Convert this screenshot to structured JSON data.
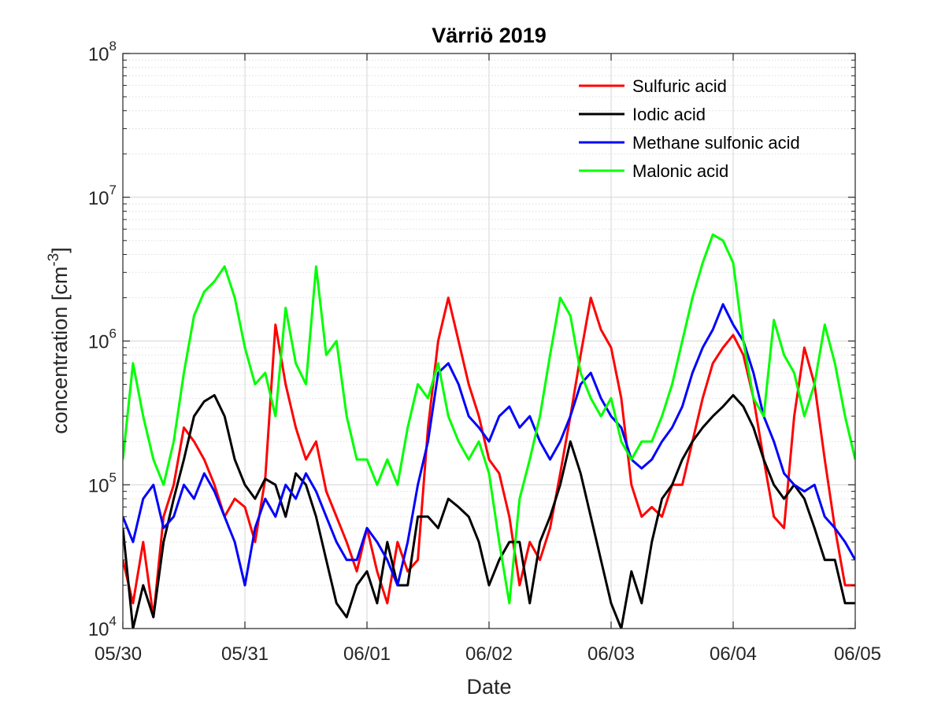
{
  "chart_data": {
    "type": "line",
    "title": "Värriö 2019",
    "xlabel": "Date",
    "ylabel": {
      "prefix": "concentration [cm",
      "superscript": "-3",
      "suffix": "]"
    },
    "y_scale": "log",
    "ylim": [
      10000,
      100000000
    ],
    "y_ticks": [
      {
        "value": 10000,
        "base": "10",
        "exp": "4"
      },
      {
        "value": 100000,
        "base": "10",
        "exp": "5"
      },
      {
        "value": 1000000,
        "base": "10",
        "exp": "6"
      },
      {
        "value": 10000000,
        "base": "10",
        "exp": "7"
      },
      {
        "value": 100000000,
        "base": "10",
        "exp": "8"
      }
    ],
    "xlim": [
      "2019-05-30",
      "2019-06-05"
    ],
    "x_ticks": [
      {
        "date": "2019-05-30",
        "label": "05/30"
      },
      {
        "date": "2019-05-31",
        "label": "05/31"
      },
      {
        "date": "2019-06-01",
        "label": "06/01"
      },
      {
        "date": "2019-06-02",
        "label": "06/02"
      },
      {
        "date": "2019-06-03",
        "label": "06/03"
      },
      {
        "date": "2019-06-04",
        "label": "06/04"
      },
      {
        "date": "2019-06-05",
        "label": "06/05"
      }
    ],
    "grid": true,
    "minor_grid": true,
    "legend_position": "top-right",
    "series": [
      {
        "name": "Sulfuric acid",
        "color": "#ff0000",
        "x": [
          "2019-05-30 00:00",
          "2019-05-30 02:00",
          "2019-05-30 04:00",
          "2019-05-30 06:00",
          "2019-05-30 08:00",
          "2019-05-30 10:00",
          "2019-05-30 12:00",
          "2019-05-30 14:00",
          "2019-05-30 16:00",
          "2019-05-30 18:00",
          "2019-05-30 20:00",
          "2019-05-30 22:00",
          "2019-05-31 00:00",
          "2019-05-31 02:00",
          "2019-05-31 04:00",
          "2019-05-31 06:00",
          "2019-05-31 08:00",
          "2019-05-31 10:00",
          "2019-05-31 12:00",
          "2019-05-31 14:00",
          "2019-05-31 16:00",
          "2019-05-31 18:00",
          "2019-05-31 20:00",
          "2019-05-31 22:00",
          "2019-06-01 00:00",
          "2019-06-01 02:00",
          "2019-06-01 04:00",
          "2019-06-01 06:00",
          "2019-06-01 08:00",
          "2019-06-01 10:00",
          "2019-06-01 12:00",
          "2019-06-01 14:00",
          "2019-06-01 16:00",
          "2019-06-01 18:00",
          "2019-06-01 20:00",
          "2019-06-01 22:00",
          "2019-06-02 00:00",
          "2019-06-02 02:00",
          "2019-06-02 04:00",
          "2019-06-02 06:00",
          "2019-06-02 08:00",
          "2019-06-02 10:00",
          "2019-06-02 12:00",
          "2019-06-02 14:00",
          "2019-06-02 16:00",
          "2019-06-02 18:00",
          "2019-06-02 20:00",
          "2019-06-02 22:00",
          "2019-06-03 00:00",
          "2019-06-03 02:00",
          "2019-06-03 04:00",
          "2019-06-03 06:00",
          "2019-06-03 08:00",
          "2019-06-03 10:00",
          "2019-06-03 12:00",
          "2019-06-03 14:00",
          "2019-06-03 16:00",
          "2019-06-03 18:00",
          "2019-06-03 20:00",
          "2019-06-03 22:00",
          "2019-06-04 00:00",
          "2019-06-04 02:00",
          "2019-06-04 04:00",
          "2019-06-04 06:00",
          "2019-06-04 08:00",
          "2019-06-04 10:00",
          "2019-06-04 12:00",
          "2019-06-04 14:00",
          "2019-06-04 16:00",
          "2019-06-04 18:00",
          "2019-06-04 20:00",
          "2019-06-04 22:00",
          "2019-06-05 00:00"
        ],
        "y": [
          30000,
          15000,
          40000,
          12000,
          60000,
          100000,
          250000,
          200000,
          150000,
          100000,
          60000,
          80000,
          70000,
          40000,
          110000,
          1300000,
          500000,
          250000,
          150000,
          200000,
          90000,
          60000,
          40000,
          25000,
          50000,
          25000,
          15000,
          40000,
          25000,
          30000,
          250000,
          1000000,
          2000000,
          1000000,
          500000,
          300000,
          150000,
          120000,
          60000,
          20000,
          40000,
          30000,
          50000,
          120000,
          300000,
          800000,
          2000000,
          1200000,
          900000,
          400000,
          100000,
          60000,
          70000,
          60000,
          100000,
          100000,
          200000,
          400000,
          700000,
          900000,
          1100000,
          800000,
          400000,
          150000,
          60000,
          50000,
          300000,
          900000,
          500000,
          150000,
          50000,
          20000,
          20000
        ]
      },
      {
        "name": "Iodic acid",
        "color": "#000000",
        "x": [
          "2019-05-30 00:00",
          "2019-05-30 02:00",
          "2019-05-30 04:00",
          "2019-05-30 06:00",
          "2019-05-30 08:00",
          "2019-05-30 10:00",
          "2019-05-30 12:00",
          "2019-05-30 14:00",
          "2019-05-30 16:00",
          "2019-05-30 18:00",
          "2019-05-30 20:00",
          "2019-05-30 22:00",
          "2019-05-31 00:00",
          "2019-05-31 02:00",
          "2019-05-31 04:00",
          "2019-05-31 06:00",
          "2019-05-31 08:00",
          "2019-05-31 10:00",
          "2019-05-31 12:00",
          "2019-05-31 14:00",
          "2019-05-31 16:00",
          "2019-05-31 18:00",
          "2019-05-31 20:00",
          "2019-05-31 22:00",
          "2019-06-01 00:00",
          "2019-06-01 02:00",
          "2019-06-01 04:00",
          "2019-06-01 06:00",
          "2019-06-01 08:00",
          "2019-06-01 10:00",
          "2019-06-01 12:00",
          "2019-06-01 14:00",
          "2019-06-01 16:00",
          "2019-06-01 18:00",
          "2019-06-01 20:00",
          "2019-06-01 22:00",
          "2019-06-02 00:00",
          "2019-06-02 02:00",
          "2019-06-02 04:00",
          "2019-06-02 06:00",
          "2019-06-02 08:00",
          "2019-06-02 10:00",
          "2019-06-02 12:00",
          "2019-06-02 14:00",
          "2019-06-02 16:00",
          "2019-06-02 18:00",
          "2019-06-02 20:00",
          "2019-06-02 22:00",
          "2019-06-03 00:00",
          "2019-06-03 02:00",
          "2019-06-03 04:00",
          "2019-06-03 06:00",
          "2019-06-03 08:00",
          "2019-06-03 10:00",
          "2019-06-03 12:00",
          "2019-06-03 14:00",
          "2019-06-03 16:00",
          "2019-06-03 18:00",
          "2019-06-03 20:00",
          "2019-06-03 22:00",
          "2019-06-04 00:00",
          "2019-06-04 02:00",
          "2019-06-04 04:00",
          "2019-06-04 06:00",
          "2019-06-04 08:00",
          "2019-06-04 10:00",
          "2019-06-04 12:00",
          "2019-06-04 14:00",
          "2019-06-04 16:00",
          "2019-06-04 18:00",
          "2019-06-04 20:00",
          "2019-06-04 22:00",
          "2019-06-05 00:00"
        ],
        "y": [
          50000,
          10000,
          20000,
          12000,
          40000,
          80000,
          150000,
          300000,
          380000,
          420000,
          300000,
          150000,
          100000,
          80000,
          110000,
          100000,
          60000,
          120000,
          100000,
          60000,
          30000,
          15000,
          12000,
          20000,
          25000,
          15000,
          40000,
          20000,
          20000,
          60000,
          60000,
          50000,
          80000,
          70000,
          60000,
          40000,
          20000,
          30000,
          40000,
          40000,
          15000,
          40000,
          60000,
          100000,
          200000,
          120000,
          60000,
          30000,
          15000,
          10000,
          25000,
          15000,
          40000,
          80000,
          100000,
          150000,
          200000,
          250000,
          300000,
          350000,
          420000,
          350000,
          250000,
          150000,
          100000,
          80000,
          100000,
          80000,
          50000,
          30000,
          30000,
          15000,
          15000
        ]
      },
      {
        "name": "Methane sulfonic acid",
        "color": "#0000ff",
        "x": [
          "2019-05-30 00:00",
          "2019-05-30 02:00",
          "2019-05-30 04:00",
          "2019-05-30 06:00",
          "2019-05-30 08:00",
          "2019-05-30 10:00",
          "2019-05-30 12:00",
          "2019-05-30 14:00",
          "2019-05-30 16:00",
          "2019-05-30 18:00",
          "2019-05-30 20:00",
          "2019-05-30 22:00",
          "2019-05-31 00:00",
          "2019-05-31 02:00",
          "2019-05-31 04:00",
          "2019-05-31 06:00",
          "2019-05-31 08:00",
          "2019-05-31 10:00",
          "2019-05-31 12:00",
          "2019-05-31 14:00",
          "2019-05-31 16:00",
          "2019-05-31 18:00",
          "2019-05-31 20:00",
          "2019-05-31 22:00",
          "2019-06-01 00:00",
          "2019-06-01 02:00",
          "2019-06-01 04:00",
          "2019-06-01 06:00",
          "2019-06-01 08:00",
          "2019-06-01 10:00",
          "2019-06-01 12:00",
          "2019-06-01 14:00",
          "2019-06-01 16:00",
          "2019-06-01 18:00",
          "2019-06-01 20:00",
          "2019-06-01 22:00",
          "2019-06-02 00:00",
          "2019-06-02 02:00",
          "2019-06-02 04:00",
          "2019-06-02 06:00",
          "2019-06-02 08:00",
          "2019-06-02 10:00",
          "2019-06-02 12:00",
          "2019-06-02 14:00",
          "2019-06-02 16:00",
          "2019-06-02 18:00",
          "2019-06-02 20:00",
          "2019-06-02 22:00",
          "2019-06-03 00:00",
          "2019-06-03 02:00",
          "2019-06-03 04:00",
          "2019-06-03 06:00",
          "2019-06-03 08:00",
          "2019-06-03 10:00",
          "2019-06-03 12:00",
          "2019-06-03 14:00",
          "2019-06-03 16:00",
          "2019-06-03 18:00",
          "2019-06-03 20:00",
          "2019-06-03 22:00",
          "2019-06-04 00:00",
          "2019-06-04 02:00",
          "2019-06-04 04:00",
          "2019-06-04 06:00",
          "2019-06-04 08:00",
          "2019-06-04 10:00",
          "2019-06-04 12:00",
          "2019-06-04 14:00",
          "2019-06-04 16:00",
          "2019-06-04 18:00",
          "2019-06-04 20:00",
          "2019-06-04 22:00",
          "2019-06-05 00:00"
        ],
        "y": [
          60000,
          40000,
          80000,
          100000,
          50000,
          60000,
          100000,
          80000,
          120000,
          90000,
          60000,
          40000,
          20000,
          50000,
          80000,
          60000,
          100000,
          80000,
          120000,
          90000,
          60000,
          40000,
          30000,
          30000,
          50000,
          40000,
          30000,
          20000,
          40000,
          100000,
          200000,
          600000,
          700000,
          500000,
          300000,
          250000,
          200000,
          300000,
          350000,
          250000,
          300000,
          200000,
          150000,
          200000,
          300000,
          500000,
          600000,
          400000,
          300000,
          250000,
          150000,
          130000,
          150000,
          200000,
          250000,
          350000,
          600000,
          900000,
          1200000,
          1800000,
          1300000,
          1000000,
          600000,
          300000,
          200000,
          120000,
          100000,
          90000,
          100000,
          60000,
          50000,
          40000,
          30000
        ]
      },
      {
        "name": "Malonic acid",
        "color": "#00ff00",
        "x": [
          "2019-05-30 00:00",
          "2019-05-30 02:00",
          "2019-05-30 04:00",
          "2019-05-30 06:00",
          "2019-05-30 08:00",
          "2019-05-30 10:00",
          "2019-05-30 12:00",
          "2019-05-30 14:00",
          "2019-05-30 16:00",
          "2019-05-30 18:00",
          "2019-05-30 20:00",
          "2019-05-30 22:00",
          "2019-05-31 00:00",
          "2019-05-31 02:00",
          "2019-05-31 04:00",
          "2019-05-31 06:00",
          "2019-05-31 08:00",
          "2019-05-31 10:00",
          "2019-05-31 12:00",
          "2019-05-31 14:00",
          "2019-05-31 16:00",
          "2019-05-31 18:00",
          "2019-05-31 20:00",
          "2019-05-31 22:00",
          "2019-06-01 00:00",
          "2019-06-01 02:00",
          "2019-06-01 04:00",
          "2019-06-01 06:00",
          "2019-06-01 08:00",
          "2019-06-01 10:00",
          "2019-06-01 12:00",
          "2019-06-01 14:00",
          "2019-06-01 16:00",
          "2019-06-01 18:00",
          "2019-06-01 20:00",
          "2019-06-01 22:00",
          "2019-06-02 00:00",
          "2019-06-02 02:00",
          "2019-06-02 04:00",
          "2019-06-02 06:00",
          "2019-06-02 08:00",
          "2019-06-02 10:00",
          "2019-06-02 12:00",
          "2019-06-02 14:00",
          "2019-06-02 16:00",
          "2019-06-02 18:00",
          "2019-06-02 20:00",
          "2019-06-02 22:00",
          "2019-06-03 00:00",
          "2019-06-03 02:00",
          "2019-06-03 04:00",
          "2019-06-03 06:00",
          "2019-06-03 08:00",
          "2019-06-03 10:00",
          "2019-06-03 12:00",
          "2019-06-03 14:00",
          "2019-06-03 16:00",
          "2019-06-03 18:00",
          "2019-06-03 20:00",
          "2019-06-03 22:00",
          "2019-06-04 00:00",
          "2019-06-04 02:00",
          "2019-06-04 04:00",
          "2019-06-04 06:00",
          "2019-06-04 08:00",
          "2019-06-04 10:00",
          "2019-06-04 12:00",
          "2019-06-04 14:00",
          "2019-06-04 16:00",
          "2019-06-04 18:00",
          "2019-06-04 20:00",
          "2019-06-04 22:00",
          "2019-06-05 00:00"
        ],
        "y": [
          150000,
          700000,
          300000,
          150000,
          100000,
          200000,
          600000,
          1500000,
          2200000,
          2600000,
          3300000,
          2000000,
          900000,
          500000,
          600000,
          300000,
          1700000,
          700000,
          500000,
          3300000,
          800000,
          1000000,
          300000,
          150000,
          150000,
          100000,
          150000,
          100000,
          250000,
          500000,
          400000,
          700000,
          300000,
          200000,
          150000,
          200000,
          120000,
          40000,
          15000,
          80000,
          150000,
          300000,
          800000,
          2000000,
          1500000,
          600000,
          400000,
          300000,
          400000,
          200000,
          150000,
          200000,
          200000,
          300000,
          500000,
          1000000,
          2000000,
          3500000,
          5500000,
          5000000,
          3500000,
          1000000,
          400000,
          300000,
          1400000,
          800000,
          600000,
          300000,
          500000,
          1300000,
          700000,
          300000,
          150000
        ]
      }
    ]
  }
}
